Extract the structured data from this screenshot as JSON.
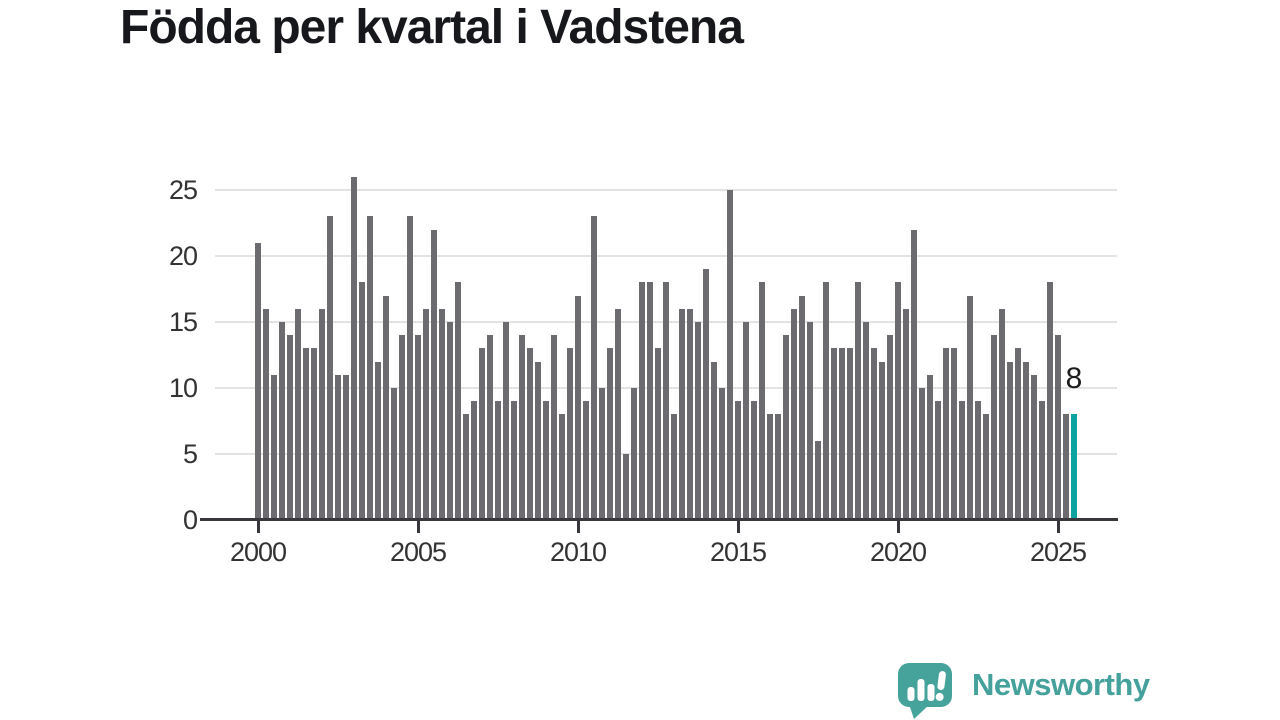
{
  "title": "Födda per kvartal i Vadstena",
  "chart_data": {
    "type": "bar",
    "title": "Födda per kvartal i Vadstena",
    "frequency": "quarterly",
    "x_start": "2000-Q1",
    "x_end": "2025-Q3",
    "values": [
      21,
      16,
      11,
      15,
      14,
      16,
      13,
      13,
      16,
      23,
      11,
      11,
      26,
      18,
      23,
      12,
      17,
      10,
      14,
      23,
      14,
      16,
      22,
      16,
      15,
      18,
      8,
      9,
      13,
      14,
      9,
      15,
      9,
      14,
      13,
      12,
      9,
      14,
      8,
      13,
      17,
      9,
      23,
      10,
      13,
      16,
      5,
      10,
      18,
      18,
      13,
      18,
      8,
      16,
      16,
      15,
      19,
      12,
      10,
      25,
      9,
      15,
      9,
      18,
      8,
      8,
      14,
      16,
      17,
      15,
      6,
      18,
      13,
      13,
      13,
      18,
      15,
      13,
      12,
      14,
      18,
      16,
      22,
      10,
      11,
      9,
      13,
      13,
      9,
      17,
      9,
      8,
      14,
      16,
      12,
      13,
      12,
      11,
      9,
      18,
      14,
      8,
      8
    ],
    "highlight_last": true,
    "highlight_value_label": "8",
    "bar_color": "#6b6b70",
    "highlight_color": "#0ca4a0",
    "x_ticks": [
      "2000",
      "2005",
      "2010",
      "2015",
      "2020",
      "2025"
    ],
    "y_ticks": [
      0,
      5,
      10,
      15,
      20,
      25
    ],
    "ylim": [
      0,
      26.5
    ],
    "grid": "horizontal",
    "legend": "none",
    "xlabel": "",
    "ylabel": ""
  },
  "logo": {
    "text": "Newsworthy",
    "color": "#44a19b"
  }
}
